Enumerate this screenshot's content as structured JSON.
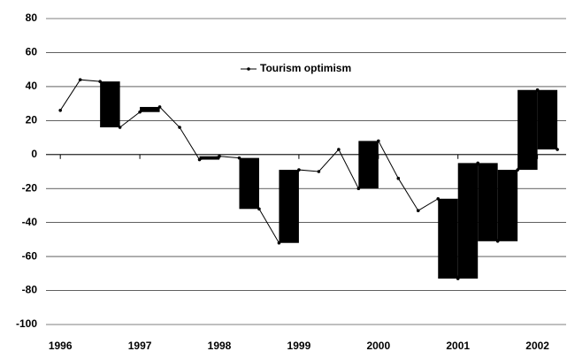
{
  "chart_data": {
    "type": "line",
    "x": [
      1996,
      1996.25,
      1996.5,
      1996.75,
      1997,
      1997.25,
      1997.5,
      1997.75,
      1998,
      1998.25,
      1998.5,
      1998.75,
      1999,
      1999.25,
      1999.5,
      1999.75,
      2000,
      2000.25,
      2000.5,
      2000.75,
      2001,
      2001.25,
      2001.5,
      2001.75,
      2002,
      2002.25
    ],
    "series": [
      {
        "name": "Tourism optimism",
        "color": "#000000",
        "values": [
          26,
          44,
          43,
          16,
          25,
          28,
          16,
          -3,
          -1,
          -2,
          -32,
          -52,
          -9,
          -10,
          3,
          -20,
          8,
          -14,
          -33,
          -26,
          -73,
          -5,
          -51,
          -9,
          38,
          3
        ]
      }
    ],
    "bars": [
      {
        "x0": 1996.5,
        "x1": 1996.75,
        "from": 43,
        "to": 16
      },
      {
        "x0": 1997,
        "x1": 1997.25,
        "from": 25,
        "to": 28
      },
      {
        "x0": 1997.75,
        "x1": 1998,
        "from": -3,
        "to": -1
      },
      {
        "x0": 1998.25,
        "x1": 1998.5,
        "from": -2,
        "to": -32
      },
      {
        "x0": 1998.75,
        "x1": 1999,
        "from": -52,
        "to": -9
      },
      {
        "x0": 1999.75,
        "x1": 2000,
        "from": -20,
        "to": 8
      },
      {
        "x0": 2000.75,
        "x1": 2001,
        "from": -26,
        "to": -73
      },
      {
        "x0": 2001,
        "x1": 2001.25,
        "from": -73,
        "to": -5
      },
      {
        "x0": 2001.25,
        "x1": 2001.5,
        "from": -5,
        "to": -51
      },
      {
        "x0": 2001.5,
        "x1": 2001.75,
        "from": -51,
        "to": -9
      },
      {
        "x0": 2001.75,
        "x1": 2002,
        "from": -9,
        "to": 38
      },
      {
        "x0": 2002,
        "x1": 2002.25,
        "from": 38,
        "to": 3
      }
    ],
    "bar_color": "#000000",
    "xlim": [
      1995.82,
      2002.36
    ],
    "xticks": [
      1996,
      1997,
      1998,
      1999,
      2000,
      2001,
      2002
    ],
    "ylim": [
      -100,
      80
    ],
    "yticks": [
      -100,
      -80,
      -60,
      -40,
      -20,
      0,
      20,
      40,
      60,
      80
    ],
    "grid": true,
    "legend": "top"
  }
}
